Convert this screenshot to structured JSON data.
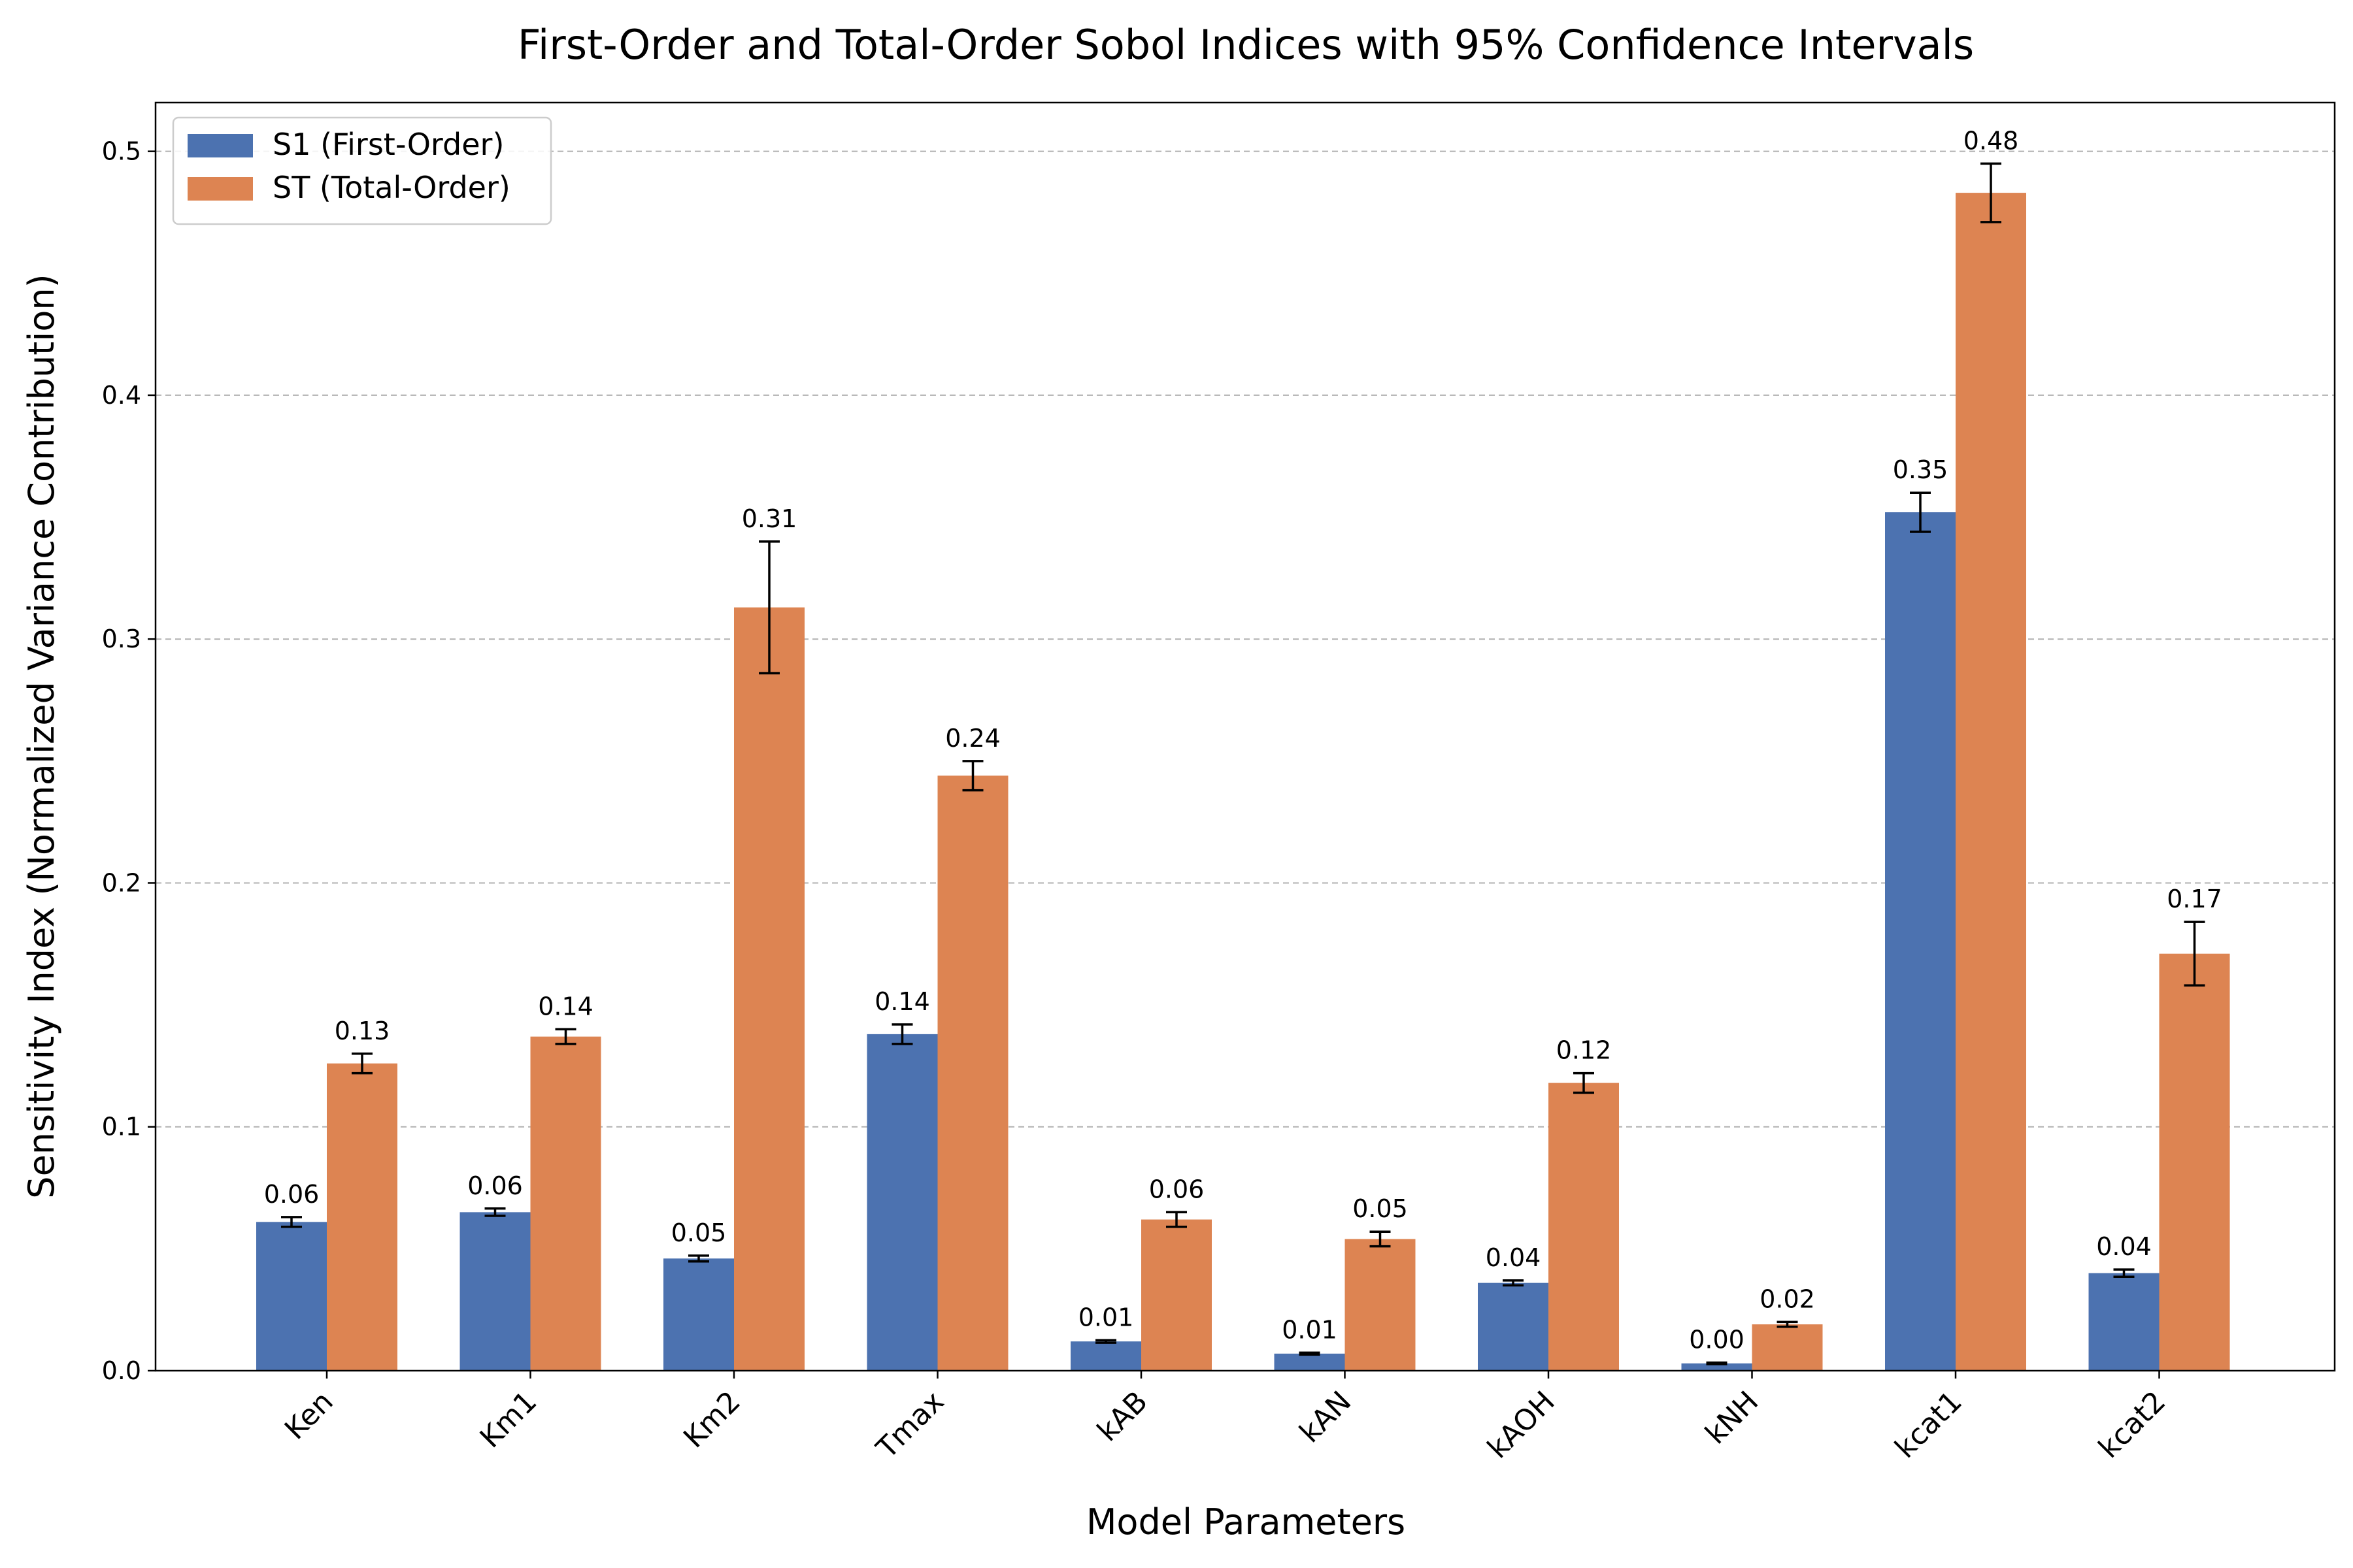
{
  "chart_data": {
    "type": "bar",
    "title": "First-Order and Total-Order Sobol Indices with 95% Confidence Intervals",
    "xlabel": "Model Parameters",
    "ylabel": "Sensitivity Index (Normalized Variance Contribution)",
    "ylim": [
      0,
      0.52
    ],
    "yticks": [
      "0.0",
      "0.1",
      "0.2",
      "0.3",
      "0.4",
      "0.5"
    ],
    "grid": "y-dashed",
    "legend_position": "top-left",
    "categories": [
      "Ken",
      "Km1",
      "Km2",
      "Tmax",
      "kAB",
      "kAN",
      "kAOH",
      "kNH",
      "kcat1",
      "kcat2"
    ],
    "series": [
      {
        "name": "S1 (First-Order)",
        "color": "#4c72b0",
        "values": [
          0.061,
          0.065,
          0.046,
          0.138,
          0.012,
          0.007,
          0.036,
          0.003,
          0.352,
          0.04
        ],
        "ci": [
          0.002,
          0.0015,
          0.0012,
          0.004,
          0.0005,
          0.0004,
          0.001,
          0.0003,
          0.008,
          0.0015
        ],
        "labels": [
          "0.06",
          "0.06",
          "0.05",
          "0.14",
          "0.01",
          "0.01",
          "0.04",
          "0.00",
          "0.35",
          "0.04"
        ]
      },
      {
        "name": "ST (Total-Order)",
        "color": "#dd8452",
        "values": [
          0.126,
          0.137,
          0.313,
          0.244,
          0.062,
          0.054,
          0.118,
          0.019,
          0.483,
          0.171
        ],
        "ci": [
          0.004,
          0.003,
          0.027,
          0.006,
          0.003,
          0.003,
          0.004,
          0.001,
          0.012,
          0.013
        ],
        "labels": [
          "0.13",
          "0.14",
          "0.31",
          "0.24",
          "0.06",
          "0.05",
          "0.12",
          "0.02",
          "0.48",
          "0.17"
        ]
      }
    ]
  }
}
